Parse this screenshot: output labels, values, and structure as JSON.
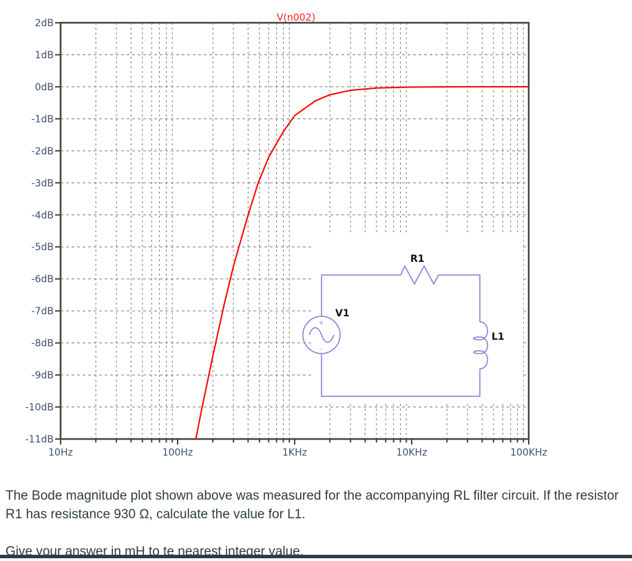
{
  "chart_data": {
    "type": "line",
    "title": "V(n002)",
    "xlabel": "",
    "ylabel": "",
    "x_scale": "log",
    "xlim": [
      10,
      100000
    ],
    "ylim": [
      -11,
      2
    ],
    "grid": true,
    "x_ticks": [
      {
        "value": 10,
        "label": "10Hz"
      },
      {
        "value": 100,
        "label": "100Hz"
      },
      {
        "value": 1000,
        "label": "1KHz"
      },
      {
        "value": 10000,
        "label": "10KHz"
      },
      {
        "value": 100000,
        "label": "100KHz"
      }
    ],
    "y_ticks": [
      {
        "value": 2,
        "label": "2dB"
      },
      {
        "value": 1,
        "label": "1dB"
      },
      {
        "value": 0,
        "label": "0dB"
      },
      {
        "value": -1,
        "label": "-1dB"
      },
      {
        "value": -2,
        "label": "-2dB"
      },
      {
        "value": -3,
        "label": "-3dB"
      },
      {
        "value": -4,
        "label": "-4dB"
      },
      {
        "value": -5,
        "label": "-5dB"
      },
      {
        "value": -6,
        "label": "-6dB"
      },
      {
        "value": -7,
        "label": "-7dB"
      },
      {
        "value": -8,
        "label": "-8dB"
      },
      {
        "value": -9,
        "label": "-9dB"
      },
      {
        "value": -10,
        "label": "-10dB"
      },
      {
        "value": -11,
        "label": "-11dB"
      }
    ],
    "series": [
      {
        "name": "V(n002)",
        "color": "#ff0000",
        "x": [
          143,
          160,
          200,
          250,
          300,
          400,
          488,
          600,
          800,
          1000,
          1500,
          2000,
          3000,
          5000,
          10000,
          30000,
          100000
        ],
        "y": [
          -11.0,
          -10.1,
          -8.4,
          -6.8,
          -5.6,
          -4.0,
          -3.0,
          -2.2,
          -1.4,
          -0.9,
          -0.44,
          -0.25,
          -0.11,
          -0.04,
          -0.01,
          0.0,
          0.0
        ]
      }
    ]
  },
  "circuit": {
    "components": [
      {
        "id": "R1",
        "label": "R1",
        "type": "resistor"
      },
      {
        "id": "V1",
        "label": "V1",
        "type": "ac-voltage-source"
      },
      {
        "id": "L1",
        "label": "L1",
        "type": "inductor"
      }
    ],
    "wire_color": "#7b7fd6"
  },
  "question": {
    "paragraph1": "The Bode magnitude plot shown above was measured for the accompanying RL filter circuit. If the resistor R1 has resistance 930 Ω, calculate the value for L1.",
    "paragraph2": "Give your answer in mH to te nearest integer value."
  }
}
